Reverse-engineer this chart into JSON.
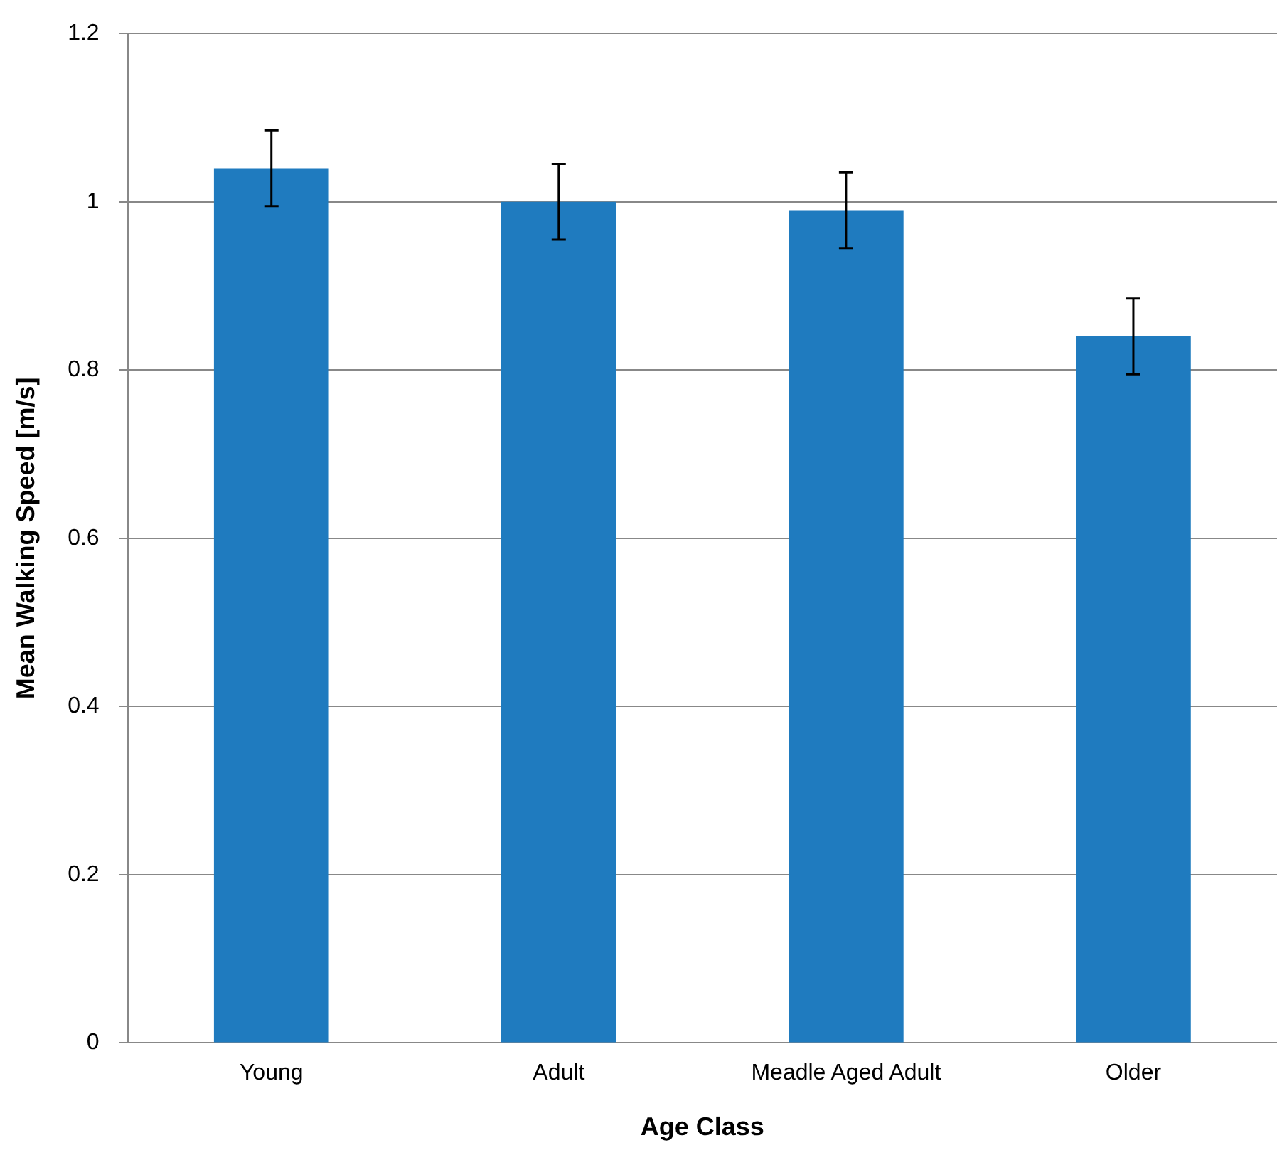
{
  "chart_data": {
    "type": "bar",
    "xlabel": "Age Class",
    "ylabel": "Mean Walking Speed [m/s]",
    "categories": [
      "Young",
      "Adult",
      "Meadle Aged Adult",
      "Older"
    ],
    "values": [
      1.04,
      1.0,
      0.99,
      0.84
    ],
    "errors": [
      0.045,
      0.045,
      0.045,
      0.045
    ],
    "color": "#1f7bbf",
    "ylim": [
      0,
      1.2
    ],
    "yticks": [
      0,
      0.2,
      0.4,
      0.6,
      0.8,
      1,
      1.2
    ],
    "grid": "y",
    "legend": false
  }
}
